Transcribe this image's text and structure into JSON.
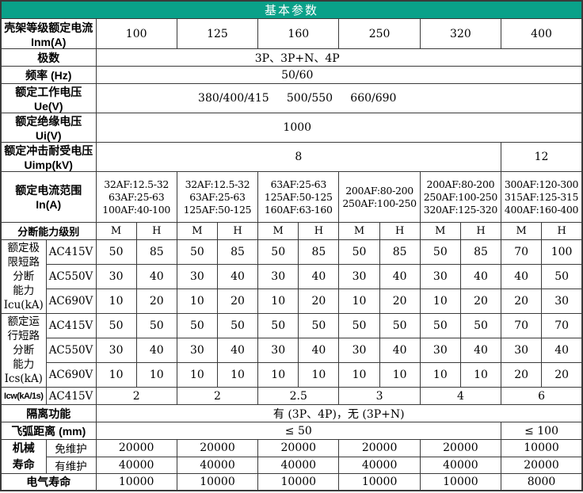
{
  "title": "基本参数",
  "colors": {
    "header_bg": "#0aa189",
    "header_text": "#ffffff",
    "border": "#3a3a3a"
  },
  "frame": {
    "label": "壳架等级额定电流 Inm(A)",
    "values": [
      "100",
      "125",
      "160",
      "250",
      "320",
      "400"
    ]
  },
  "poles": {
    "label": "极数",
    "value": "3P、3P+N、4P"
  },
  "freq": {
    "label": "频率 (Hz)",
    "value": "50/60"
  },
  "ue": {
    "label": "额定工作电压 Ue(V)",
    "value": "380/400/415     500/550     660/690"
  },
  "ui": {
    "label": "额定绝缘电压 Ui(V)",
    "value": "1000"
  },
  "uimp": {
    "label": "额定冲击耐受电压 Uimp(kV)",
    "main": "8",
    "last": "12"
  },
  "in_range": {
    "label": "额定电流范围 In(A)",
    "cols": [
      "32AF:12.5-32\n63AF:25-63\n100AF:40-100",
      "32AF:12.5-32\n63AF:25-63\n125AF:50-125",
      "63AF:25-63\n125AF:50-125\n160AF:63-160",
      "200AF:80-200\n250AF:100-250",
      "200AF:80-200\n250AF:100-250\n320AF:125-320",
      "300AF:120-300\n315AF:125-315\n400AF:160-400"
    ]
  },
  "breaking_class": {
    "label": "分断能力级别",
    "values": [
      "M",
      "H",
      "M",
      "H",
      "M",
      "H",
      "M",
      "H",
      "M",
      "H",
      "M",
      "H"
    ]
  },
  "icu": {
    "label": "额定极\n限短路\n分断\n能力\nIcu(kA)",
    "rows": [
      {
        "sub": "AC415V",
        "values": [
          "50",
          "85",
          "50",
          "85",
          "50",
          "85",
          "50",
          "85",
          "50",
          "85",
          "70",
          "100"
        ]
      },
      {
        "sub": "AC550V",
        "values": [
          "30",
          "40",
          "30",
          "40",
          "30",
          "40",
          "30",
          "40",
          "30",
          "40",
          "40",
          "50"
        ]
      },
      {
        "sub": "AC690V",
        "values": [
          "10",
          "20",
          "10",
          "20",
          "10",
          "20",
          "10",
          "20",
          "10",
          "20",
          "20",
          "30"
        ]
      }
    ]
  },
  "ics": {
    "label": "额定运\n行短路\n分断\n能力\nIcs(kA)",
    "rows": [
      {
        "sub": "AC415V",
        "values": [
          "50",
          "50",
          "50",
          "50",
          "50",
          "50",
          "50",
          "50",
          "50",
          "50",
          "70",
          "70"
        ]
      },
      {
        "sub": "AC550V",
        "values": [
          "30",
          "40",
          "30",
          "40",
          "30",
          "40",
          "30",
          "40",
          "30",
          "40",
          "30",
          "40"
        ]
      },
      {
        "sub": "AC690V",
        "values": [
          "10",
          "10",
          "10",
          "10",
          "10",
          "10",
          "10",
          "10",
          "10",
          "10",
          "20",
          "20"
        ]
      }
    ]
  },
  "icw": {
    "label": "Icw(kA/1s)",
    "sub": "AC415V",
    "values": [
      "2",
      "2",
      "2.5",
      "3",
      "4",
      "6"
    ]
  },
  "isolation": {
    "label": "隔离功能",
    "value": "有 (3P、4P)，无 (3P+N)"
  },
  "arc": {
    "label": "飞弧距离 (mm)",
    "main": "≤ 50",
    "last": "≤ 100"
  },
  "mech": {
    "label": "机械\n寿命",
    "rows": [
      {
        "sub": "免维护",
        "values": [
          "20000",
          "20000",
          "20000",
          "20000",
          "20000",
          "10000"
        ]
      },
      {
        "sub": "有维护",
        "values": [
          "40000",
          "40000",
          "40000",
          "40000",
          "40000",
          "20000"
        ]
      }
    ]
  },
  "elec": {
    "label": "电气寿命",
    "values": [
      "10000",
      "10000",
      "10000",
      "10000",
      "10000",
      "8000"
    ]
  }
}
